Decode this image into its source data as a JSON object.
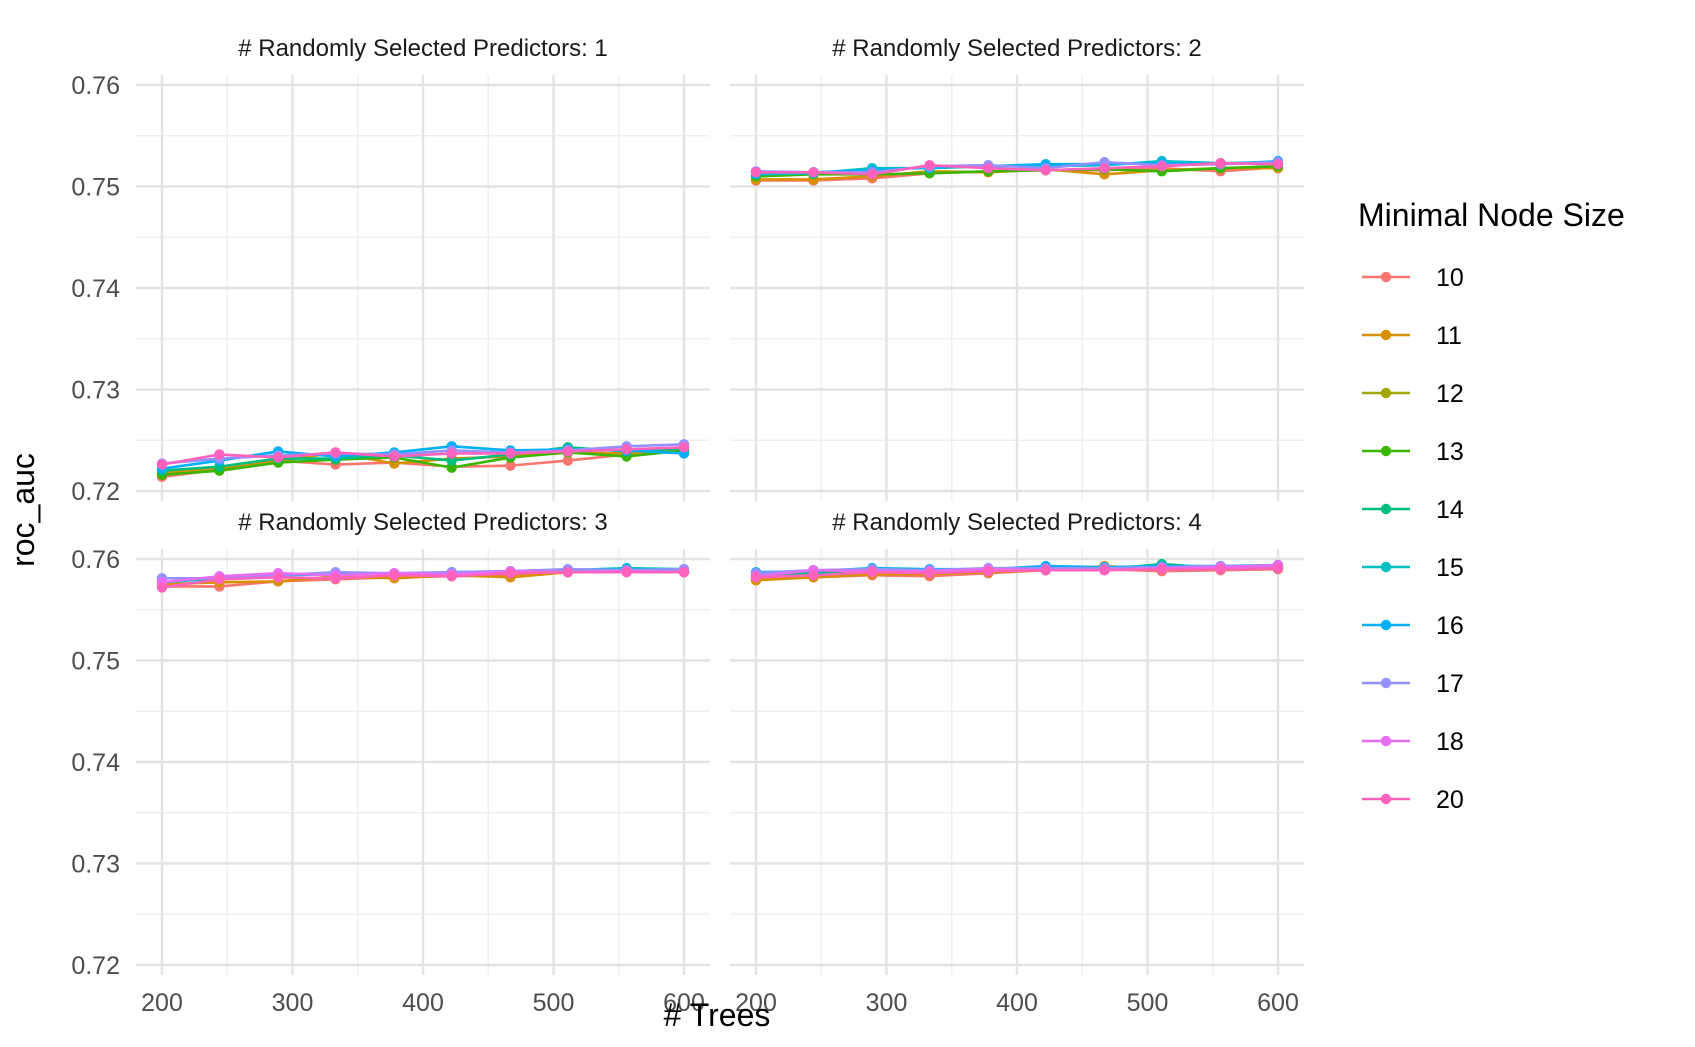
{
  "chart_data": {
    "type": "line",
    "xlabel": "# Trees",
    "ylabel": "roc_auc",
    "xlim": [
      200,
      600
    ],
    "ylim": [
      0.72,
      0.76
    ],
    "x_ticks": [
      200,
      300,
      400,
      500,
      600
    ],
    "y_ticks": [
      0.72,
      0.73,
      0.74,
      0.75,
      0.76
    ],
    "y_tick_labels": [
      "0.72",
      "0.73",
      "0.74",
      "0.75",
      "0.76"
    ],
    "grid": true,
    "legend": {
      "title": "Minimal Node Size",
      "placement": "right",
      "entries": [
        {
          "label": "10",
          "color": "#F8766D"
        },
        {
          "label": "11",
          "color": "#D89000"
        },
        {
          "label": "12",
          "color": "#A3A500"
        },
        {
          "label": "13",
          "color": "#39B600"
        },
        {
          "label": "14",
          "color": "#00BF7D"
        },
        {
          "label": "15",
          "color": "#00BFC4"
        },
        {
          "label": "16",
          "color": "#00B0F6"
        },
        {
          "label": "17",
          "color": "#9590FF"
        },
        {
          "label": "18",
          "color": "#E76BF3"
        },
        {
          "label": "20",
          "color": "#FF62BC"
        }
      ]
    },
    "x": [
      200,
      244,
      289,
      333,
      378,
      422,
      467,
      511,
      556,
      600
    ],
    "panels": [
      {
        "title": "# Randomly Selected Predictors: 1",
        "series": [
          {
            "name": "10",
            "values": [
              0.7214,
              0.7221,
              0.723,
              0.7226,
              0.7228,
              0.7224,
              0.7225,
              0.723,
              0.7236,
              0.724
            ]
          },
          {
            "name": "11",
            "values": [
              0.7218,
              0.7222,
              0.7229,
              0.7238,
              0.7227,
              0.7232,
              0.7234,
              0.7238,
              0.7237,
              0.7241
            ]
          },
          {
            "name": "13",
            "values": [
              0.7216,
              0.722,
              0.7228,
              0.7231,
              0.7233,
              0.7223,
              0.7233,
              0.7238,
              0.7234,
              0.724
            ]
          },
          {
            "name": "14",
            "values": [
              0.722,
              0.7224,
              0.7232,
              0.7232,
              0.7235,
              0.723,
              0.7236,
              0.7243,
              0.7239,
              0.7242
            ]
          },
          {
            "name": "16",
            "values": [
              0.7222,
              0.723,
              0.7239,
              0.7234,
              0.7238,
              0.7244,
              0.724,
              0.7241,
              0.724,
              0.7237
            ]
          },
          {
            "name": "17",
            "values": [
              0.7227,
              0.7232,
              0.7235,
              0.7237,
              0.7236,
              0.724,
              0.7238,
              0.724,
              0.7244,
              0.7246
            ]
          },
          {
            "name": "20",
            "values": [
              0.7226,
              0.7236,
              0.7233,
              0.7238,
              0.7234,
              0.7237,
              0.7237,
              0.7239,
              0.7241,
              0.7243
            ]
          }
        ]
      },
      {
        "title": "# Randomly Selected Predictors: 2",
        "series": [
          {
            "name": "10",
            "values": [
              0.7506,
              0.7506,
              0.7508,
              0.7513,
              0.7515,
              0.7516,
              0.7516,
              0.7518,
              0.7515,
              0.7519
            ]
          },
          {
            "name": "11",
            "values": [
              0.7507,
              0.7507,
              0.751,
              0.7515,
              0.7514,
              0.7517,
              0.7512,
              0.7516,
              0.7518,
              0.7518
            ]
          },
          {
            "name": "13",
            "values": [
              0.751,
              0.7512,
              0.7512,
              0.7513,
              0.7515,
              0.7516,
              0.7517,
              0.7515,
              0.7518,
              0.752
            ]
          },
          {
            "name": "15",
            "values": [
              0.7512,
              0.7513,
              0.7518,
              0.7518,
              0.752,
              0.752,
              0.7521,
              0.7525,
              0.7523,
              0.7524
            ]
          },
          {
            "name": "16",
            "values": [
              0.7513,
              0.7514,
              0.7516,
              0.7519,
              0.752,
              0.7522,
              0.7522,
              0.7523,
              0.7522,
              0.7525
            ]
          },
          {
            "name": "17",
            "values": [
              0.7515,
              0.7514,
              0.7514,
              0.752,
              0.7521,
              0.7518,
              0.7524,
              0.7521,
              0.7522,
              0.7524
            ]
          },
          {
            "name": "20",
            "values": [
              0.7514,
              0.7514,
              0.7512,
              0.7521,
              0.7518,
              0.7516,
              0.7518,
              0.752,
              0.7523,
              0.7522
            ]
          }
        ]
      },
      {
        "title": "# Randomly Selected Predictors: 3",
        "series": [
          {
            "name": "10",
            "values": [
              0.7573,
              0.7573,
              0.7578,
              0.758,
              0.7582,
              0.7583,
              0.7584,
              0.7587,
              0.7587,
              0.7587
            ]
          },
          {
            "name": "11",
            "values": [
              0.7575,
              0.7577,
              0.7578,
              0.7583,
              0.7581,
              0.7584,
              0.7582,
              0.7587,
              0.7588,
              0.7588
            ]
          },
          {
            "name": "15",
            "values": [
              0.7577,
              0.7581,
              0.7584,
              0.7585,
              0.7585,
              0.7587,
              0.7588,
              0.7589,
              0.7591,
              0.759
            ]
          },
          {
            "name": "17",
            "values": [
              0.7581,
              0.7581,
              0.7584,
              0.7587,
              0.7586,
              0.7587,
              0.7588,
              0.759,
              0.7589,
              0.759
            ]
          },
          {
            "name": "18",
            "values": [
              0.7577,
              0.7583,
              0.7586,
              0.7584,
              0.7586,
              0.7585,
              0.7588,
              0.7587,
              0.7588,
              0.7587
            ]
          },
          {
            "name": "20",
            "values": [
              0.7572,
              0.758,
              0.7582,
              0.7581,
              0.7584,
              0.7583,
              0.7586,
              0.7587,
              0.7587,
              0.7587
            ]
          }
        ]
      },
      {
        "title": "# Randomly Selected Predictors: 4",
        "series": [
          {
            "name": "10",
            "values": [
              0.758,
              0.7582,
              0.7584,
              0.7583,
              0.7586,
              0.7589,
              0.759,
              0.7588,
              0.7589,
              0.759
            ]
          },
          {
            "name": "11",
            "values": [
              0.7579,
              0.7582,
              0.7585,
              0.7585,
              0.7587,
              0.7589,
              0.7593,
              0.759,
              0.759,
              0.7591
            ]
          },
          {
            "name": "14",
            "values": [
              0.7584,
              0.7586,
              0.759,
              0.7588,
              0.759,
              0.7591,
              0.759,
              0.7595,
              0.7591,
              0.7592
            ]
          },
          {
            "name": "16",
            "values": [
              0.7587,
              0.7588,
              0.7591,
              0.759,
              0.759,
              0.7593,
              0.7592,
              0.7593,
              0.7593,
              0.7594
            ]
          },
          {
            "name": "17",
            "values": [
              0.7586,
              0.7589,
              0.759,
              0.7589,
              0.7591,
              0.7591,
              0.7591,
              0.7592,
              0.7593,
              0.7593
            ]
          },
          {
            "name": "18",
            "values": [
              0.7583,
              0.7589,
              0.7588,
              0.7588,
              0.759,
              0.7589,
              0.7589,
              0.7591,
              0.7592,
              0.7594
            ]
          },
          {
            "name": "20",
            "values": [
              0.7582,
              0.7584,
              0.7587,
              0.7586,
              0.7588,
              0.7589,
              0.7589,
              0.759,
              0.759,
              0.7591
            ]
          }
        ]
      }
    ]
  }
}
